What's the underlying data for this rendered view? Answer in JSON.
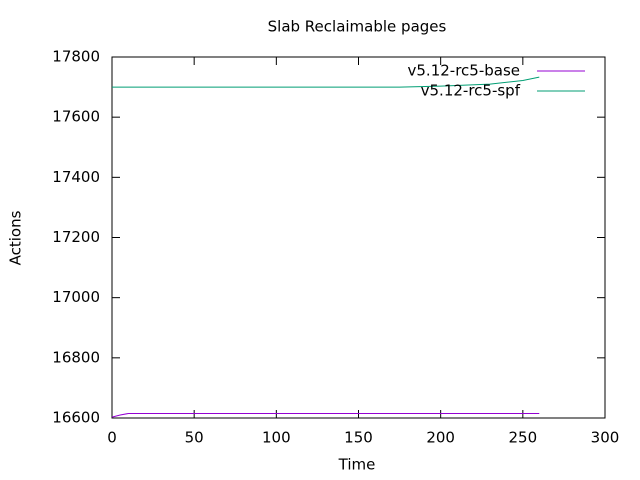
{
  "chart_data": {
    "type": "line",
    "title": "Slab Reclaimable pages",
    "x_label": "Time",
    "y_label": "Actions",
    "x": [
      0,
      5,
      10,
      50,
      100,
      150,
      175,
      200,
      230,
      250,
      260
    ],
    "series": [
      {
        "name": "v5.12-rc5-base",
        "color": "#9400d3",
        "values": [
          16603,
          16610,
          16615,
          16615,
          16615,
          16615,
          16615,
          16615,
          16615,
          16615,
          16615
        ]
      },
      {
        "name": "v5.12-rc5-spf",
        "color": "#009e73",
        "values": [
          17700,
          17700,
          17700,
          17700,
          17700,
          17700,
          17700,
          17703,
          17710,
          17722,
          17733
        ]
      }
    ],
    "xlim": [
      0,
      300
    ],
    "xticks": [
      0,
      50,
      100,
      150,
      200,
      250,
      300
    ],
    "ylim": [
      16600,
      17800
    ],
    "yticks": [
      16600,
      16800,
      17000,
      17200,
      17400,
      17600,
      17800
    ],
    "grid": false,
    "legend": "top-right"
  }
}
